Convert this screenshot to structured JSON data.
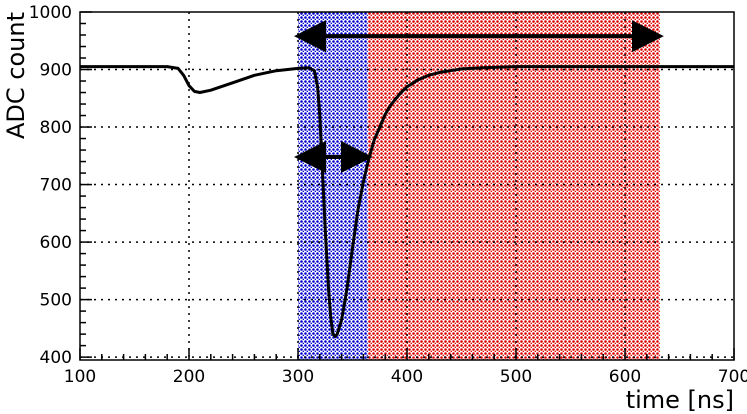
{
  "chart_data": {
    "type": "line",
    "xlabel": "time [ns]",
    "ylabel": "ADC count",
    "xlim": [
      100,
      700
    ],
    "ylim": [
      395,
      1000
    ],
    "grid": true,
    "x_ticks": [
      100,
      200,
      300,
      400,
      500,
      600,
      700
    ],
    "y_ticks": [
      400,
      500,
      600,
      700,
      800,
      900,
      1000
    ],
    "series": [
      {
        "color": "#000000",
        "x": [
          100,
          150,
          180,
          190,
          195,
          200,
          205,
          210,
          220,
          240,
          260,
          280,
          300,
          310,
          315,
          318,
          320,
          322,
          325,
          328,
          330,
          332,
          334,
          336,
          340,
          345,
          350,
          355,
          360,
          365,
          370,
          375,
          380,
          385,
          390,
          395,
          400,
          410,
          420,
          430,
          440,
          450,
          470,
          500,
          550,
          600,
          650,
          700
        ],
        "y": [
          905,
          905,
          905,
          902,
          890,
          872,
          862,
          860,
          864,
          877,
          890,
          898,
          902,
          903,
          898,
          870,
          820,
          740,
          620,
          520,
          470,
          440,
          436,
          440,
          465,
          520,
          590,
          655,
          705,
          745,
          778,
          800,
          822,
          838,
          850,
          861,
          870,
          882,
          890,
          895,
          898,
          901,
          903,
          905,
          905,
          905,
          905,
          905
        ]
      }
    ],
    "shaded_regions": [
      {
        "x_start": 300,
        "x_end": 364,
        "color": "#0000cc"
      },
      {
        "x_start": 364,
        "x_end": 632,
        "color": "#dd0000"
      }
    ],
    "arrows": [
      {
        "x_start": 300,
        "x_end": 365,
        "y": 748
      },
      {
        "x_start": 300,
        "x_end": 632,
        "y": 958
      }
    ]
  }
}
